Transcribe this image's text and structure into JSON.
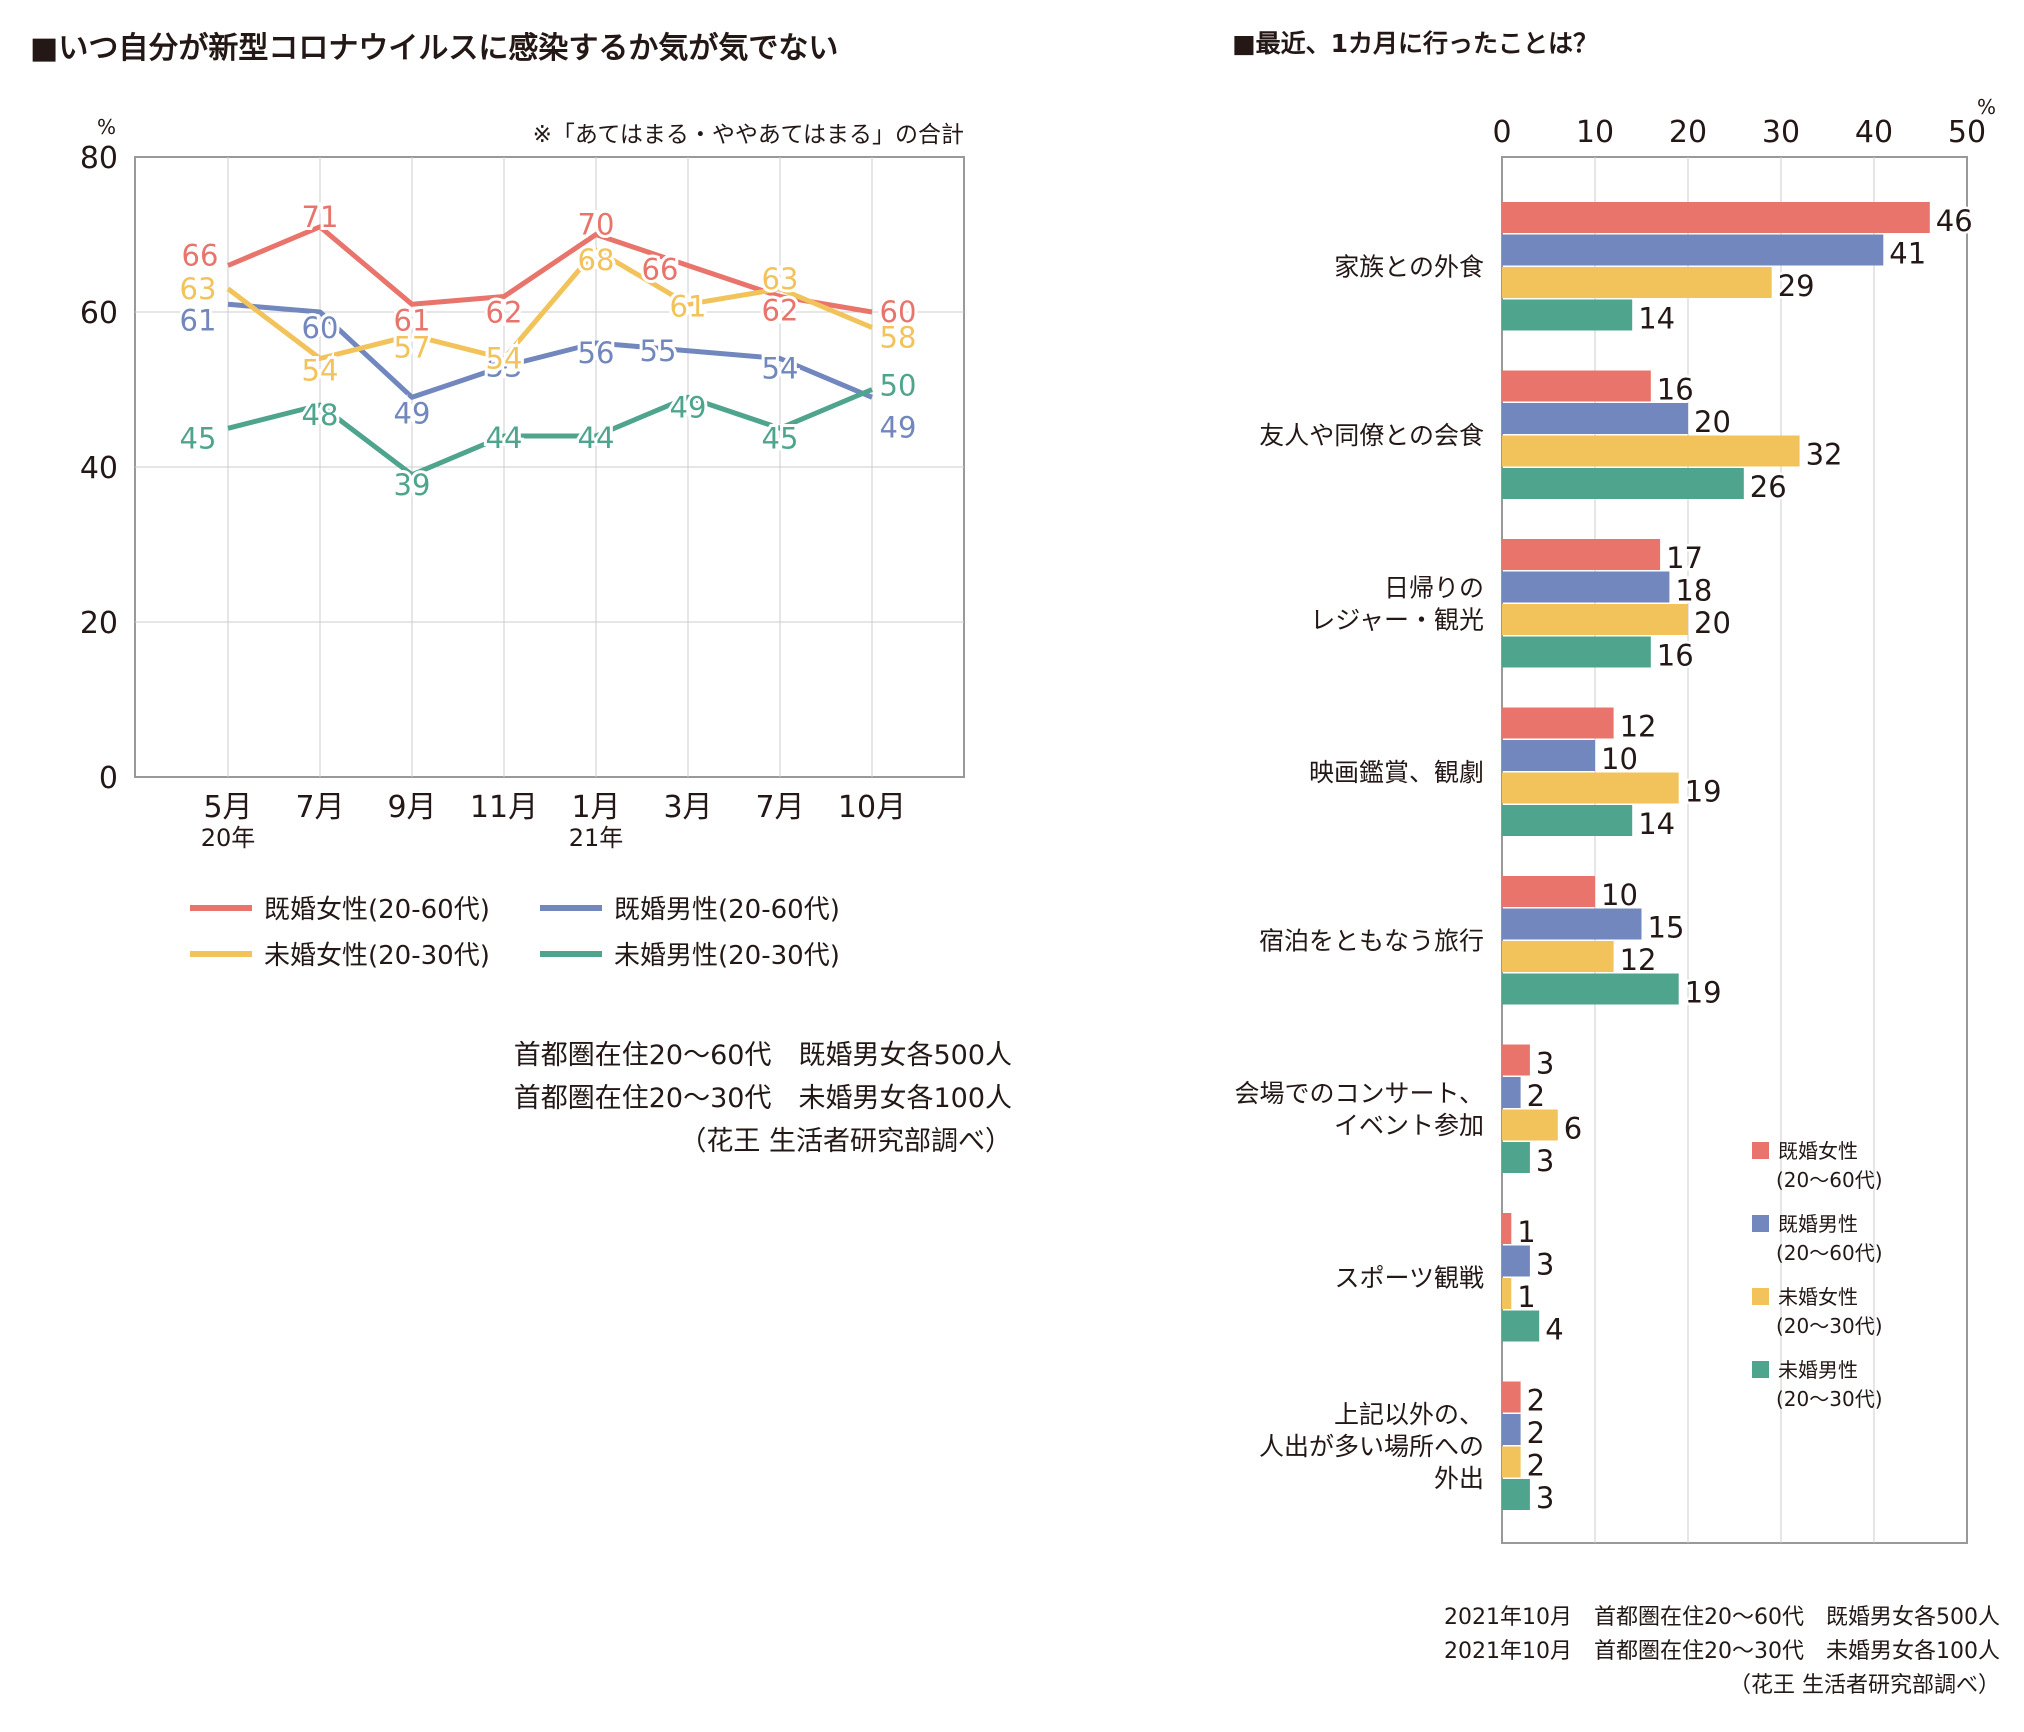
{
  "colors": {
    "kikon_josei": "#E8746B",
    "kikon_dansei": "#7187BD",
    "mikon_josei": "#F3C35B",
    "mikon_dansei": "#4FA48E",
    "grid": "#cccccc",
    "frame": "#999999",
    "text": "#231815"
  },
  "chart_data": [
    {
      "type": "line",
      "title": "■いつ自分が新型コロナウイルスに感染するか気が気でない",
      "note": "※「あてはまる・ややあてはまる」の合計",
      "unit": "%",
      "categories": [
        "5月",
        "7月",
        "9月",
        "11月",
        "1月",
        "3月",
        "7月",
        "10月"
      ],
      "year_labels": [
        "20年",
        "",
        "",
        "",
        "21年",
        "",
        "",
        ""
      ],
      "ylim": [
        0,
        80
      ],
      "yticks": [
        0,
        20,
        40,
        60,
        80
      ],
      "grid": true,
      "series": [
        {
          "name": "既婚女性(20-60代)",
          "key": "kikon_josei",
          "values": [
            66,
            71,
            61,
            62,
            70,
            66,
            62,
            60
          ]
        },
        {
          "name": "既婚男性(20-60代)",
          "key": "kikon_dansei",
          "values": [
            61,
            60,
            49,
            53,
            56,
            55,
            54,
            49
          ]
        },
        {
          "name": "未婚女性(20-30代)",
          "key": "mikon_josei",
          "values": [
            63,
            54,
            57,
            54,
            68,
            61,
            63,
            58
          ]
        },
        {
          "name": "未婚男性(20-30代)",
          "key": "mikon_dansei",
          "values": [
            45,
            48,
            39,
            44,
            44,
            49,
            45,
            50
          ]
        }
      ],
      "source_lines": [
        "首都圏在住20～60代　既婚男女各500人",
        "首都圏在住20～30代　未婚男女各100人",
        "（花王 生活者研究部調べ）"
      ]
    },
    {
      "type": "bar",
      "orientation": "horizontal",
      "title": "■最近、1カ月に行ったことは？",
      "unit": "%",
      "xlim": [
        0,
        50
      ],
      "xticks": [
        0,
        10,
        20,
        30,
        40,
        50
      ],
      "categories": [
        [
          "家族との外食"
        ],
        [
          "友人や同僚との会食"
        ],
        [
          "日帰りの",
          "レジャー・観光"
        ],
        [
          "映画鑑賞、観劇"
        ],
        [
          "宿泊をともなう旅行"
        ],
        [
          "会場でのコンサート、",
          "イベント参加"
        ],
        [
          "スポーツ観戦"
        ],
        [
          "上記以外の、",
          "人出が多い場所への",
          "外出"
        ]
      ],
      "series": [
        {
          "name": "既婚女性",
          "sub": "(20～60代)",
          "key": "kikon_josei",
          "values": [
            46,
            16,
            17,
            12,
            10,
            3,
            1,
            2
          ]
        },
        {
          "name": "既婚男性",
          "sub": "(20～60代)",
          "key": "kikon_dansei",
          "values": [
            41,
            20,
            18,
            10,
            15,
            2,
            3,
            2
          ]
        },
        {
          "name": "未婚女性",
          "sub": "(20～30代)",
          "key": "mikon_josei",
          "values": [
            29,
            32,
            20,
            19,
            12,
            6,
            1,
            2
          ]
        },
        {
          "name": "未婚男性",
          "sub": "(20～30代)",
          "key": "mikon_dansei",
          "values": [
            14,
            26,
            16,
            14,
            19,
            3,
            4,
            3
          ]
        }
      ],
      "source_lines": [
        "2021年10月　首都圏在住20～60代　既婚男女各500人",
        "2021年10月　首都圏在住20～30代　未婚男女各100人",
        "（花王 生活者研究部調べ）"
      ]
    }
  ]
}
